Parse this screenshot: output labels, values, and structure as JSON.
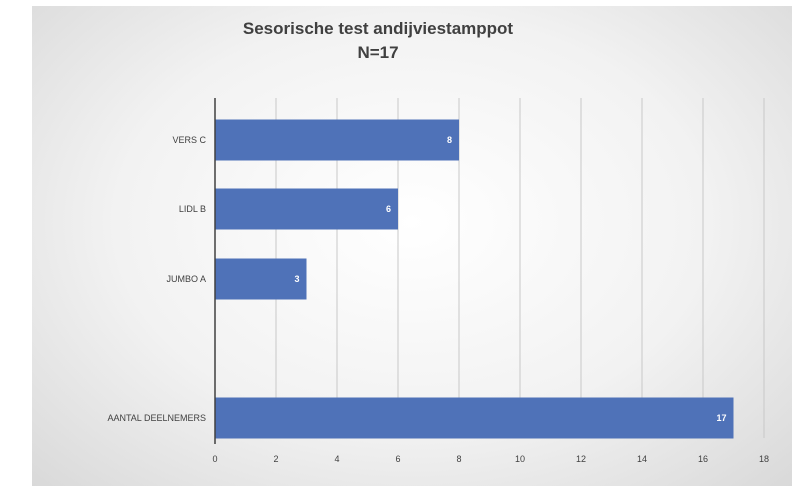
{
  "chart_data": {
    "type": "bar",
    "orientation": "horizontal",
    "title": "Sesorische test andijviestamppot",
    "subtitle": "N=17",
    "categories": [
      "VERS C",
      "LIDL B",
      "JUMBO A",
      "",
      "AANTAL DEELNEMERS"
    ],
    "values": [
      8,
      6,
      3,
      null,
      17
    ],
    "xlim": [
      0,
      18
    ],
    "x_ticks": [
      0,
      2,
      4,
      6,
      8,
      10,
      12,
      14,
      16,
      18
    ],
    "grid": "vertical",
    "bar_color": "#4f72b8",
    "data_labels": true
  }
}
